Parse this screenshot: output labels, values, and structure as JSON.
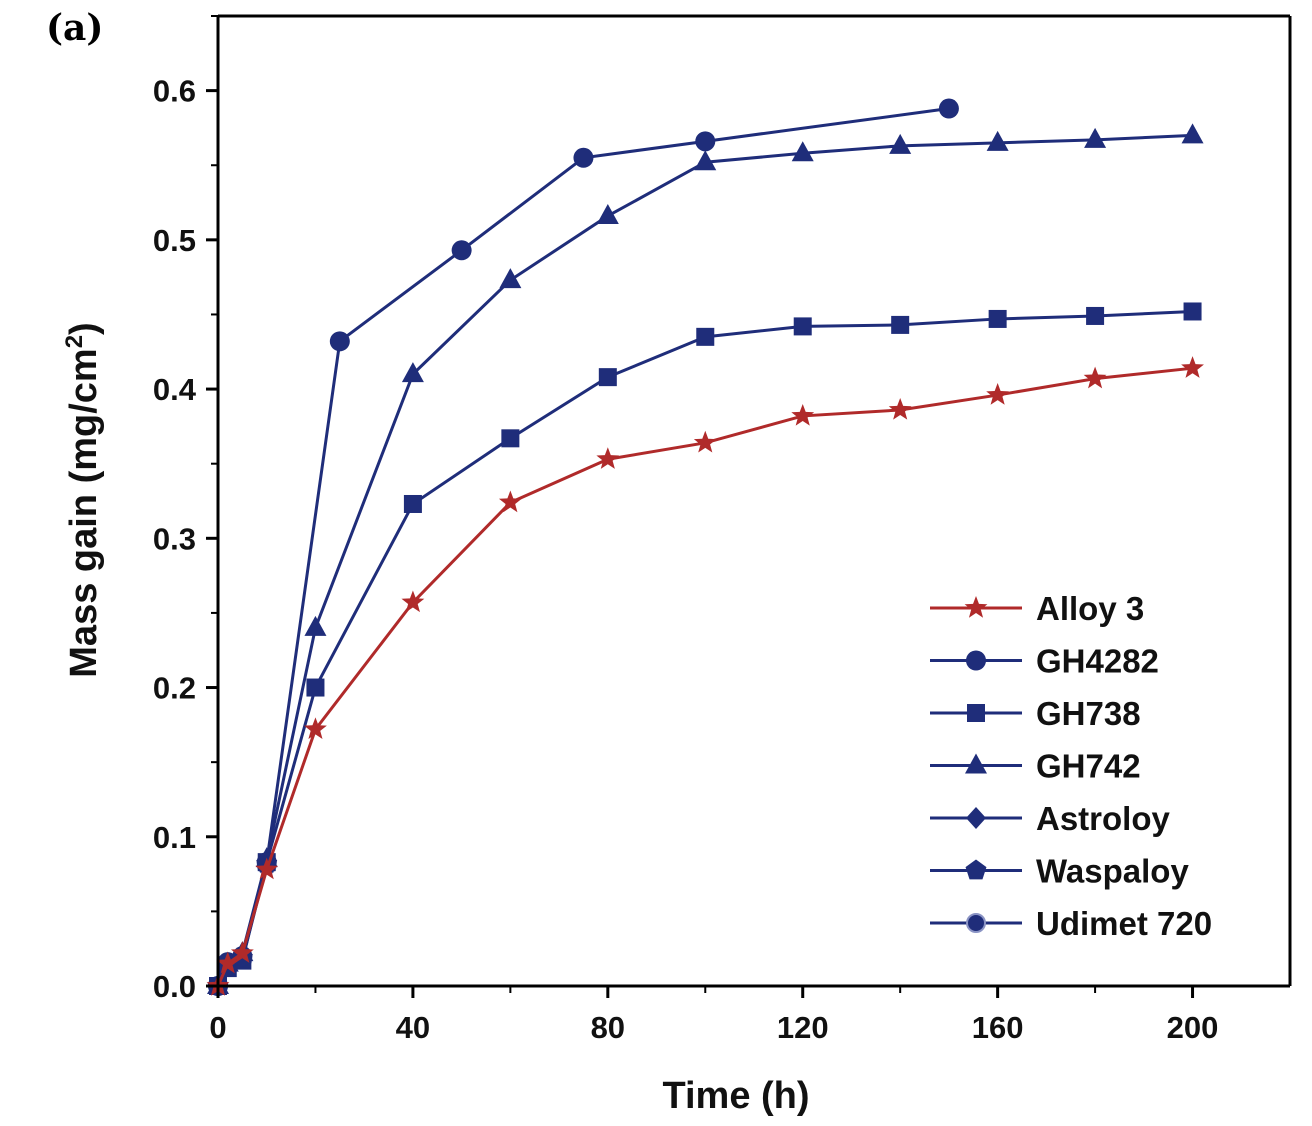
{
  "panel_label": "(a)",
  "colors": {
    "blue": "#1f2d7a",
    "red": "#b02a2a",
    "axis": "#000000"
  },
  "chart_data": {
    "type": "line",
    "xlabel": "Time (h)",
    "ylabel": "Mass gain (mg/cm",
    "ylabel_sup": "2",
    "ylabel_close": ")",
    "xlim": [
      0,
      220
    ],
    "ylim": [
      0,
      0.65
    ],
    "xticks": [
      0,
      40,
      80,
      120,
      160,
      200
    ],
    "yticks": [
      0.0,
      0.1,
      0.2,
      0.3,
      0.4,
      0.5,
      0.6
    ],
    "xtick_labels": [
      "0",
      "40",
      "80",
      "120",
      "160",
      "200"
    ],
    "ytick_labels": [
      "0.0",
      "0.1",
      "0.2",
      "0.3",
      "0.4",
      "0.5",
      "0.6"
    ],
    "grid": false,
    "legend_position": "bottom-right",
    "series": [
      {
        "name": "Alloy 3",
        "color": "#b02a2a",
        "marker": "star",
        "x": [
          0,
          2,
          5,
          10,
          20,
          40,
          60,
          80,
          100,
          120,
          140,
          160,
          180,
          200
        ],
        "y": [
          0,
          0.015,
          0.022,
          0.078,
          0.172,
          0.257,
          0.324,
          0.353,
          0.364,
          0.382,
          0.386,
          0.396,
          0.407,
          0.414
        ]
      },
      {
        "name": "GH4282",
        "color": "#1f2d7a",
        "marker": "circle",
        "x": [
          0,
          2,
          5,
          10,
          25,
          50,
          75,
          100,
          150
        ],
        "y": [
          0,
          0.016,
          0.02,
          0.083,
          0.432,
          0.493,
          0.555,
          0.566,
          0.588
        ]
      },
      {
        "name": "GH738",
        "color": "#1f2d7a",
        "marker": "square",
        "x": [
          0,
          2,
          5,
          10,
          20,
          40,
          60,
          80,
          100,
          120,
          140,
          160,
          180,
          200
        ],
        "y": [
          0,
          0.012,
          0.017,
          0.083,
          0.2,
          0.323,
          0.367,
          0.408,
          0.435,
          0.442,
          0.443,
          0.447,
          0.449,
          0.452
        ]
      },
      {
        "name": "GH742",
        "color": "#1f2d7a",
        "marker": "triangle",
        "x": [
          0,
          2,
          5,
          10,
          20,
          40,
          60,
          80,
          100,
          120,
          140,
          160,
          180,
          200
        ],
        "y": [
          0,
          0.015,
          0.022,
          0.085,
          0.24,
          0.41,
          0.473,
          0.516,
          0.552,
          0.558,
          0.563,
          0.565,
          0.567,
          0.57
        ]
      },
      {
        "name": "Astroloy",
        "color": "#1f2d7a",
        "marker": "diamond",
        "x": [
          0,
          2,
          5,
          10
        ],
        "y": [
          0,
          0.015,
          0.02,
          0.083
        ]
      },
      {
        "name": "Waspaloy",
        "color": "#1f2d7a",
        "marker": "pentagon",
        "x": [
          0,
          2,
          5,
          10
        ],
        "y": [
          0,
          0.014,
          0.019,
          0.082
        ]
      },
      {
        "name": "Udimet 720",
        "color": "#1f2d7a",
        "marker": "sphere",
        "x": [
          0,
          2,
          5,
          10
        ],
        "y": [
          0,
          0.013,
          0.018,
          0.081
        ]
      }
    ]
  }
}
